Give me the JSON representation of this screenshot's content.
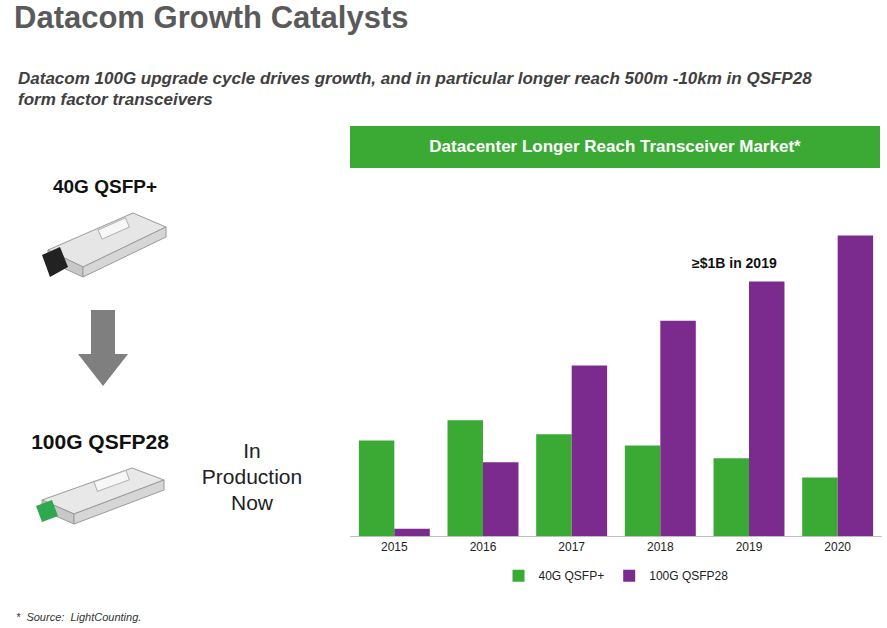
{
  "slide": {
    "title": "Datacom Growth Catalysts",
    "subtitle": "Datacom 100G upgrade cycle drives growth, and in particular longer reach 500m -10km in QSFP28 form factor transceivers",
    "products": [
      {
        "label": "40G QSFP+"
      },
      {
        "label": "100G QSFP28",
        "note": [
          "In",
          "Production",
          "Now"
        ]
      }
    ],
    "footnote": "*  Source:  LightCounting."
  },
  "chart_data": {
    "type": "bar",
    "title": "Datacenter Longer Reach Transceiver Market*",
    "categories": [
      "2015",
      "2016",
      "2017",
      "2018",
      "2019",
      "2020"
    ],
    "series": [
      {
        "name": "40G QSFP+",
        "color": "#3aaa35",
        "values": [
          375,
          455,
          400,
          355,
          305,
          230
        ]
      },
      {
        "name": "100G QSFP28",
        "color": "#7b2a8e",
        "values": [
          28,
          290,
          670,
          845,
          1000,
          1180
        ]
      }
    ],
    "ylim": [
      0,
      1300
    ],
    "grid": false,
    "legend": "bottom",
    "tick_labels": "x",
    "annotations": [
      {
        "text": "≥$1B in 2019",
        "x": "2019"
      }
    ]
  }
}
